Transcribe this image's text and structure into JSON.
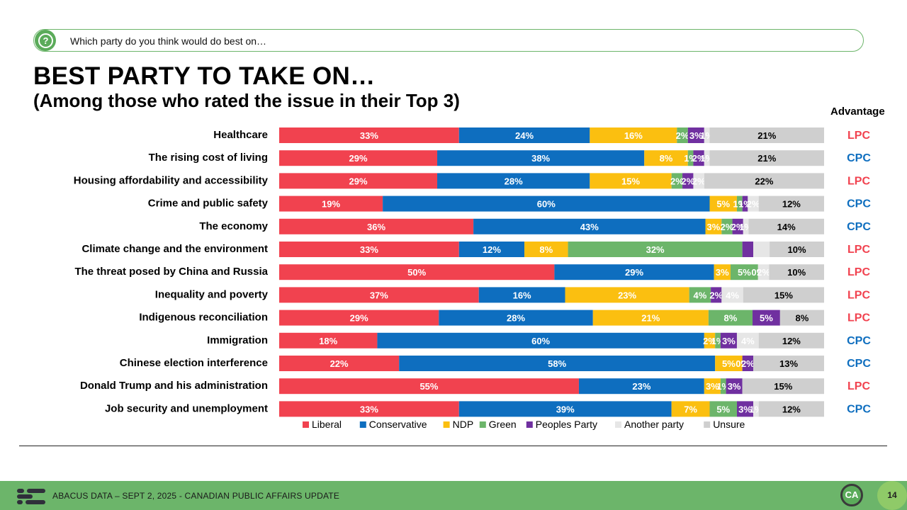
{
  "question": {
    "text": "Which party do you think would do best on…",
    "icon": "question-icon"
  },
  "title": "BEST PARTY TO TAKE ON…",
  "subtitle": "(Among those who rated the issue in their Top 3)",
  "advantage_header": "Advantage",
  "colors": {
    "Liberal": "#f1424f",
    "Conservative": "#0e6ebf",
    "NDP": "#fbbf10",
    "Green": "#6cb56a",
    "Peoples Party": "#7030a0",
    "Another party": "#e6e6e6",
    "Unsure": "#cfcfcf",
    "LPC": "#f1424f",
    "CPC": "#0e6ebf"
  },
  "chart_data": {
    "type": "bar",
    "orientation": "horizontal-stacked-100",
    "series_names": [
      "Liberal",
      "Conservative",
      "NDP",
      "Green",
      "Peoples Party",
      "Another party",
      "Unsure"
    ],
    "legend_position": "bottom",
    "categories": [
      "Healthcare",
      "The rising cost of living",
      "Housing affordability and accessibility",
      "Crime and public safety",
      "The economy",
      "Climate change and the environment",
      "The threat posed by China and Russia",
      "Inequality and poverty",
      "Indigenous reconciliation",
      "Immigration",
      "Chinese election interference",
      "Donald Trump and his administration",
      "Job security and unemployment"
    ],
    "values": [
      [
        33,
        24,
        16,
        2,
        3,
        1,
        21
      ],
      [
        29,
        38,
        8,
        1,
        2,
        1,
        21
      ],
      [
        29,
        28,
        15,
        2,
        2,
        2,
        22
      ],
      [
        19,
        60,
        5,
        1,
        1,
        2,
        12
      ],
      [
        36,
        43,
        3,
        2,
        2,
        1,
        14
      ],
      [
        33,
        12,
        8,
        32,
        2,
        3,
        10
      ],
      [
        50,
        29,
        3,
        5,
        0,
        2,
        10
      ],
      [
        37,
        16,
        23,
        4,
        2,
        4,
        15
      ],
      [
        29,
        28,
        21,
        8,
        5,
        0,
        8
      ],
      [
        18,
        60,
        2,
        1,
        3,
        4,
        12
      ],
      [
        22,
        58,
        5,
        0,
        2,
        0,
        13
      ],
      [
        55,
        23,
        3,
        1,
        3,
        0,
        15
      ],
      [
        33,
        39,
        7,
        5,
        3,
        1,
        12
      ]
    ],
    "labels": [
      [
        "33%",
        "24%",
        "16%",
        "2%",
        "3%",
        "1%",
        "21%"
      ],
      [
        "29%",
        "38%",
        "8%",
        "1%",
        "2%",
        "1%",
        "21%"
      ],
      [
        "29%",
        "28%",
        "15%",
        "2%",
        "2%",
        "2%",
        "22%"
      ],
      [
        "19%",
        "60%",
        "5%",
        "1%",
        "1%",
        "2%",
        "12%"
      ],
      [
        "36%",
        "43%",
        "3%",
        "2%",
        "2%",
        "1%",
        "14%"
      ],
      [
        "33%",
        "12%",
        "8%",
        "32%",
        "",
        "",
        "10%"
      ],
      [
        "50%",
        "29%",
        "3%",
        "5%",
        "0%",
        "2%",
        "10%"
      ],
      [
        "37%",
        "16%",
        "23%",
        "4%",
        "2%",
        "4%",
        "15%"
      ],
      [
        "29%",
        "28%",
        "21%",
        "8%",
        "5%",
        "",
        "8%"
      ],
      [
        "18%",
        "60%",
        "2%",
        "1%",
        "3%",
        "4%",
        "12%"
      ],
      [
        "22%",
        "58%",
        "5%",
        "0%",
        "2%",
        "",
        "13%"
      ],
      [
        "55%",
        "23%",
        "3%",
        "1%",
        "3%",
        "",
        "15%"
      ],
      [
        "33%",
        "39%",
        "7%",
        "5%",
        "3%",
        "1%",
        "12%"
      ]
    ],
    "advantage": [
      "LPC",
      "CPC",
      "LPC",
      "CPC",
      "CPC",
      "LPC",
      "LPC",
      "LPC",
      "LPC",
      "CPC",
      "CPC",
      "LPC",
      "CPC"
    ]
  },
  "footer": {
    "text": "ABACUS DATA – SEPT 2, 2025 - CANADIAN PUBLIC AFFAIRS UPDATE",
    "logo": "CA",
    "page_number": "14"
  }
}
